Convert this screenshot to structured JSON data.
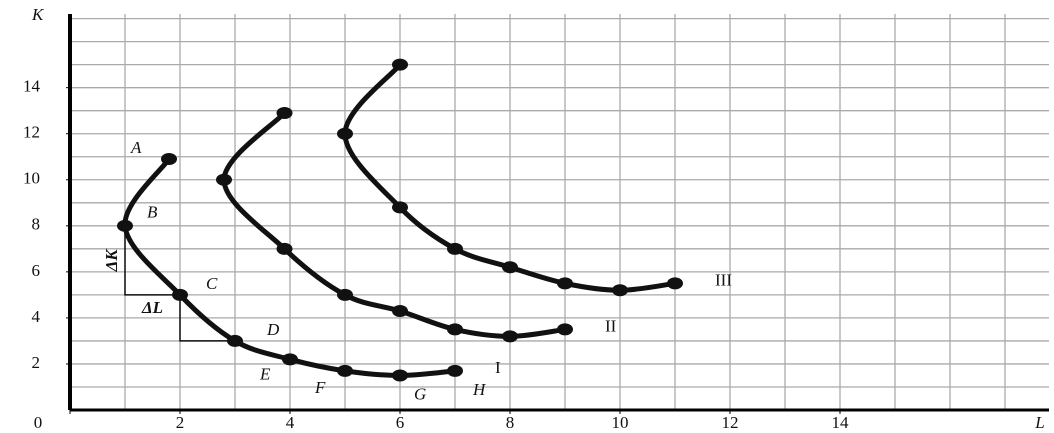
{
  "chart_data": {
    "type": "line",
    "x_label": "L",
    "y_label": "K",
    "xlim": [
      0,
      17.8
    ],
    "ylim": [
      0,
      17.2
    ],
    "xticks": [
      0,
      2,
      4,
      6,
      8,
      10,
      12,
      14
    ],
    "yticks": [
      0,
      2,
      4,
      6,
      8,
      10,
      12,
      14
    ],
    "grid": true,
    "grid_step": 1,
    "series": [
      {
        "name": "I",
        "color": "#111111",
        "x": [
          1.8,
          1,
          2,
          3,
          4,
          5,
          6,
          7
        ],
        "values": [
          10.9,
          8,
          5,
          3,
          2.2,
          1.7,
          1.5,
          1.7
        ],
        "point_labels": [
          "A",
          "B",
          "C",
          "D",
          "E",
          "F",
          "G",
          "H"
        ]
      },
      {
        "name": "II",
        "color": "#111111",
        "x": [
          3.9,
          2.8,
          3.9,
          5,
          6,
          7,
          8,
          9
        ],
        "values": [
          12.9,
          10,
          7,
          5,
          4.3,
          3.5,
          3.2,
          3.5
        ]
      },
      {
        "name": "III",
        "color": "#111111",
        "x": [
          6,
          5,
          6,
          7,
          8,
          9,
          10,
          11
        ],
        "values": [
          15,
          12,
          8.8,
          7,
          6.2,
          5.5,
          5.2,
          5.5
        ]
      }
    ],
    "annotations": [
      "ΔK",
      "ΔL"
    ]
  }
}
